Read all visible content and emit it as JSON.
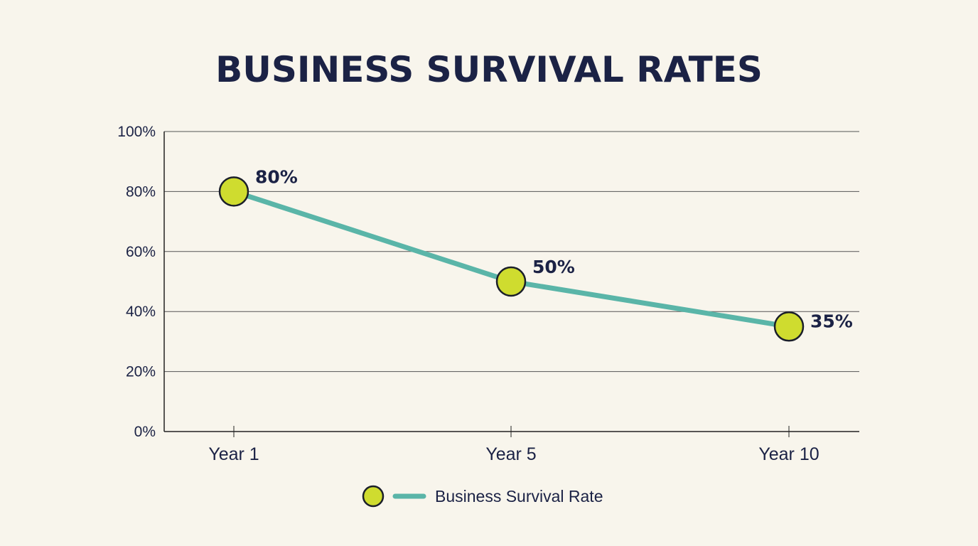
{
  "chart_data": {
    "type": "line",
    "title": "BUSINESS SURVIVAL RATES",
    "xlabel": "",
    "ylabel": "",
    "categories": [
      "Year 1",
      "Year 5",
      "Year 10"
    ],
    "series": [
      {
        "name": "Business Survival Rate",
        "values": [
          80,
          50,
          35
        ],
        "labels": [
          "80%",
          "50%",
          "35%"
        ]
      }
    ],
    "ylim": [
      0,
      100
    ],
    "yticks": [
      0,
      20,
      40,
      60,
      80,
      100
    ],
    "ytick_labels": [
      "0%",
      "20%",
      "40%",
      "60%",
      "80%",
      "100%"
    ],
    "grid": true,
    "legend": "bottom-center",
    "colors": {
      "line": "#5ab5a8",
      "marker": "#cfdc2f",
      "marker_stroke": "#1b1f2a",
      "text": "#1b2245",
      "background": "#f8f5ec",
      "grid": "#555555"
    }
  }
}
